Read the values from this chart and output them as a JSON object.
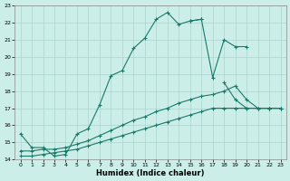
{
  "xlabel": "Humidex (Indice chaleur)",
  "background_color": "#cceee8",
  "grid_color": "#aad4ce",
  "line_color": "#1a7a6a",
  "xlim": [
    -0.5,
    23.5
  ],
  "ylim": [
    14,
    23
  ],
  "xticks": [
    0,
    1,
    2,
    3,
    4,
    5,
    6,
    7,
    8,
    9,
    10,
    11,
    12,
    13,
    14,
    15,
    16,
    17,
    18,
    19,
    20,
    21,
    22,
    23
  ],
  "yticks": [
    14,
    15,
    16,
    17,
    18,
    19,
    20,
    21,
    22,
    23
  ],
  "series": [
    {
      "x": [
        0,
        1,
        2,
        3,
        4,
        5,
        6,
        7,
        8,
        9,
        10,
        11,
        12,
        13,
        14,
        15,
        16
      ],
      "y": [
        15.5,
        14.7,
        14.7,
        14.2,
        14.3,
        15.5,
        15.8,
        17.2,
        18.9,
        19.2,
        20.5,
        21.1,
        22.2,
        22.6,
        21.9,
        22.1,
        22.2
      ]
    },
    {
      "x": [
        15,
        16,
        17,
        18,
        19,
        20
      ],
      "y": [
        22.1,
        22.2,
        18.8,
        21.0,
        20.6,
        20.6
      ]
    },
    {
      "x": [
        18,
        19,
        20,
        21,
        22,
        23
      ],
      "y": [
        18.5,
        17.5,
        17.0,
        17.0,
        17.0,
        17.0
      ]
    },
    {
      "x": [
        0,
        1,
        2,
        3,
        4,
        5,
        6,
        7,
        8,
        9,
        10,
        11,
        12,
        13,
        14,
        15,
        16,
        17,
        18,
        19,
        20,
        21,
        22,
        23
      ],
      "y": [
        14.5,
        14.5,
        14.6,
        14.6,
        14.7,
        14.9,
        15.1,
        15.4,
        15.7,
        16.0,
        16.3,
        16.5,
        16.8,
        17.0,
        17.3,
        17.5,
        17.7,
        17.8,
        18.0,
        18.3,
        17.5,
        17.0,
        17.0,
        17.0
      ]
    },
    {
      "x": [
        0,
        1,
        2,
        3,
        4,
        5,
        6,
        7,
        8,
        9,
        10,
        11,
        12,
        13,
        14,
        15,
        16,
        17,
        18,
        19,
        20,
        21,
        22,
        23
      ],
      "y": [
        14.2,
        14.2,
        14.3,
        14.4,
        14.5,
        14.6,
        14.8,
        15.0,
        15.2,
        15.4,
        15.6,
        15.8,
        16.0,
        16.2,
        16.4,
        16.6,
        16.8,
        17.0,
        17.0,
        17.0,
        17.0,
        17.0,
        17.0,
        17.0
      ]
    }
  ]
}
